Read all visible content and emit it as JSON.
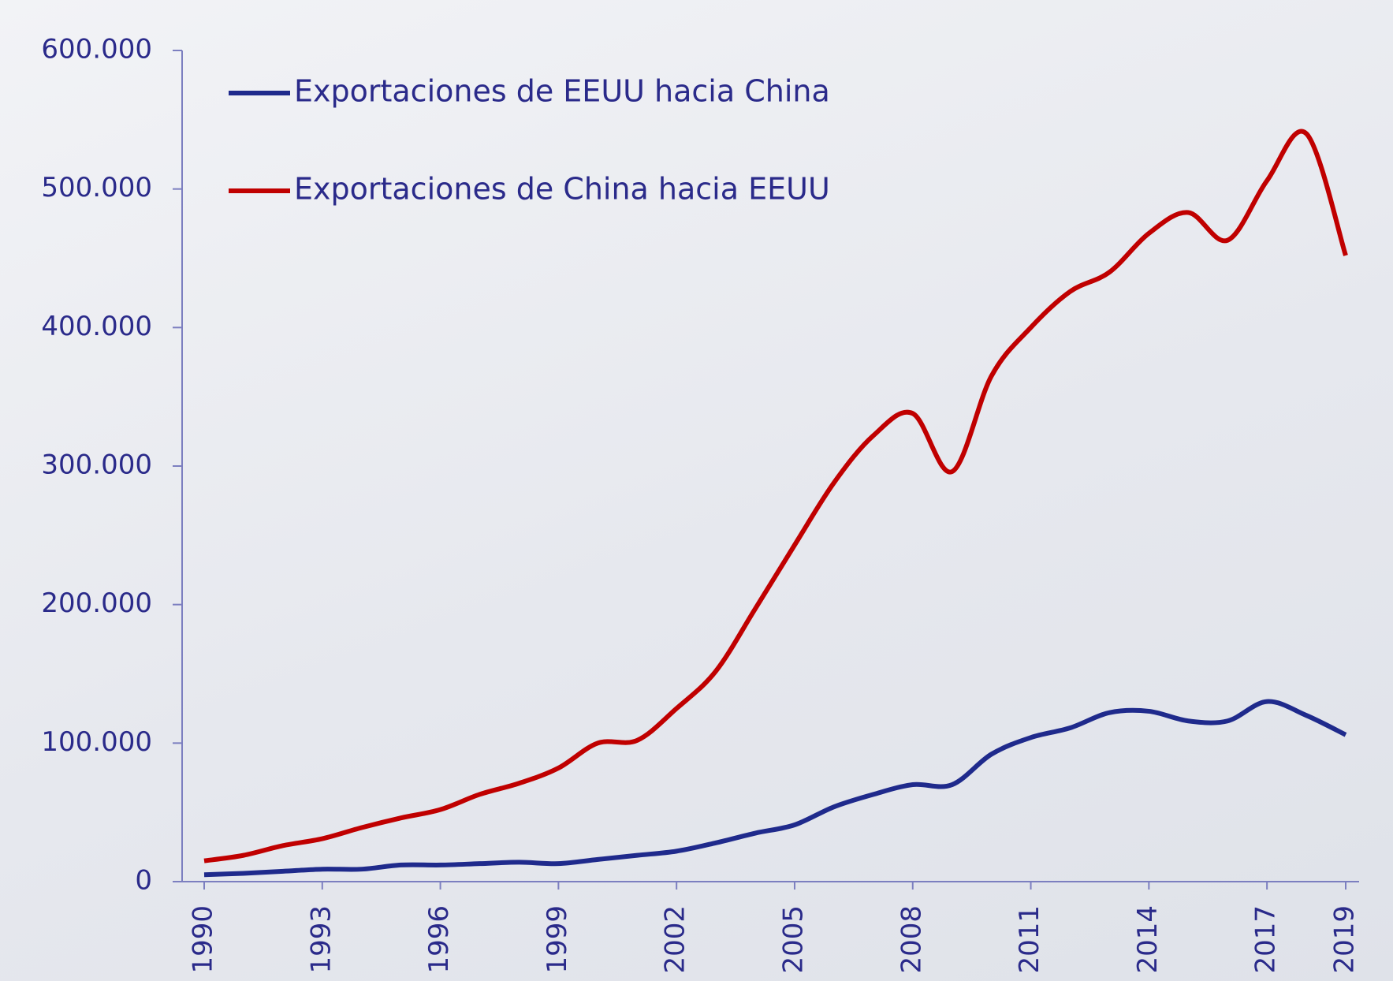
{
  "chart_data": {
    "type": "line",
    "categories": [
      1990,
      null,
      null,
      1993,
      null,
      null,
      1996,
      null,
      null,
      1999,
      null,
      null,
      2002,
      null,
      null,
      2005,
      null,
      null,
      2008,
      null,
      null,
      2011,
      null,
      null,
      2014,
      null,
      null,
      2017,
      null,
      2019
    ],
    "series": [
      {
        "name": "Exportaciones de EEUU hacia China",
        "color": "#1f2a8c",
        "values": [
          5000,
          6000,
          7500,
          9000,
          9000,
          12000,
          12000,
          13000,
          14000,
          13000,
          16000,
          19000,
          22000,
          28000,
          35000,
          41000,
          54000,
          63000,
          70000,
          70000,
          92000,
          104000,
          111000,
          122000,
          123000,
          116000,
          116000,
          130000,
          120000,
          106000
        ]
      },
      {
        "name": "Exportaciones de China hacia EEUU",
        "color": "#c00000",
        "values": [
          15000,
          19000,
          26000,
          31000,
          39000,
          46000,
          52000,
          63000,
          71000,
          82000,
          100000,
          102000,
          125000,
          152000,
          197000,
          243000,
          288000,
          322000,
          338000,
          296000,
          365000,
          400000,
          426000,
          440000,
          468000,
          483000,
          463000,
          506000,
          540000,
          452000
        ]
      }
    ],
    "ylim": [
      0,
      600000
    ],
    "yticks": [
      0,
      {
        "value": 100000,
        "label": "100.000"
      },
      {
        "value": 200000,
        "label": "200.000"
      },
      {
        "value": 300000,
        "label": "300.000"
      },
      {
        "value": 400000,
        "label": "400.000"
      },
      {
        "value": 500000,
        "label": "500.000"
      },
      {
        "value": 600000,
        "label": "600.000"
      }
    ],
    "legend": "top-left"
  }
}
